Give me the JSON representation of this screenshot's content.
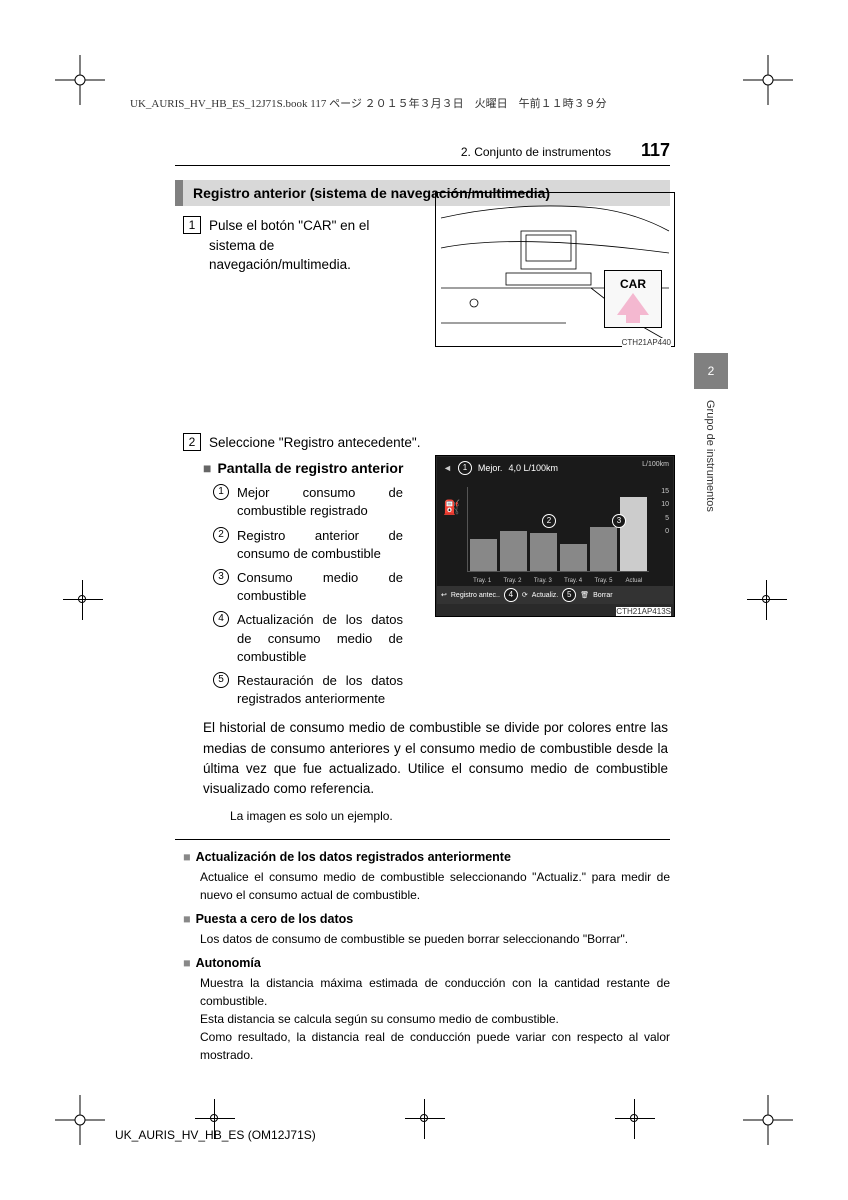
{
  "header_meta": "UK_AURIS_HV_HB_ES_12J71S.book  117 ページ  ２０１５年３月３日　火曜日　午前１１時３９分",
  "breadcrumb": "2. Conjunto de instrumentos",
  "page_number": "117",
  "section_title": "Registro anterior (sistema de navegación/multimedia)",
  "step1_num": "1",
  "step1_text": "Pulse el botón \"CAR\" en el sistema de navegación/multimedia.",
  "car_button": "CAR",
  "fig1_caption": "CTH21AP440",
  "step2_num": "2",
  "step2_text": "Seleccione \"Registro antecedente\".",
  "subhead_marker": "■",
  "subhead_text": "Pantalla de registro anterior",
  "items": [
    {
      "n": "1",
      "t": "Mejor consumo de combustible registrado"
    },
    {
      "n": "2",
      "t": "Registro anterior de consumo de combustible"
    },
    {
      "n": "3",
      "t": "Consumo medio de combustible"
    },
    {
      "n": "4",
      "t": "Actualización de los datos de consumo medio de combustible"
    },
    {
      "n": "5",
      "t": "Restauración de los datos registrados anteriormente"
    }
  ],
  "fig2_caption": "CTH21AP413S",
  "screen": {
    "best_label": "Mejor.",
    "best_value": "4,0 L/100km",
    "unit": "L/100km",
    "yticks": [
      "15",
      "10",
      "5",
      "0"
    ],
    "bars": [
      38,
      48,
      45,
      32,
      52,
      88
    ],
    "xlabels": [
      "Tray. 1",
      "Tray. 2",
      "Tray. 3",
      "Tray. 4",
      "Tray. 5",
      "Actual"
    ],
    "bottom_back": "Registro antec..",
    "bottom_update": "Actualiz.",
    "bottom_clear": "Borrar"
  },
  "para1": "El historial de consumo medio de combustible se divide por colores entre las medias de consumo anteriores y el consumo medio de combustible desde la última vez que fue actualizado. Utilice el consumo medio de combustible visualizado como referencia.",
  "note1": "La imagen es solo un ejemplo.",
  "info": [
    {
      "h": "Actualización de los datos registrados anteriormente",
      "b": [
        "Actualice el consumo medio de combustible seleccionando \"Actualiz.\" para medir de nuevo el consumo actual de combustible."
      ]
    },
    {
      "h": "Puesta a cero de los datos",
      "b": [
        "Los datos de consumo de combustible se pueden borrar seleccionando \"Borrar\"."
      ]
    },
    {
      "h": "Autonomía",
      "b": [
        "Muestra la distancia máxima estimada de conducción con la cantidad restante de combustible.",
        "Esta distancia se calcula según su consumo medio de combustible.",
        "Como resultado, la distancia real de conducción puede variar con respecto al valor mostrado."
      ]
    }
  ],
  "side_tab": "2",
  "side_label": "Grupo de instrumentos",
  "footer": "UK_AURIS_HV_HB_ES (OM12J71S)",
  "colors": {
    "gray_bar": "#d8d8d8",
    "gray_accent": "#808080",
    "screen_bg": "#1a1a1a",
    "arrow_fill": "#f4b8d0"
  }
}
